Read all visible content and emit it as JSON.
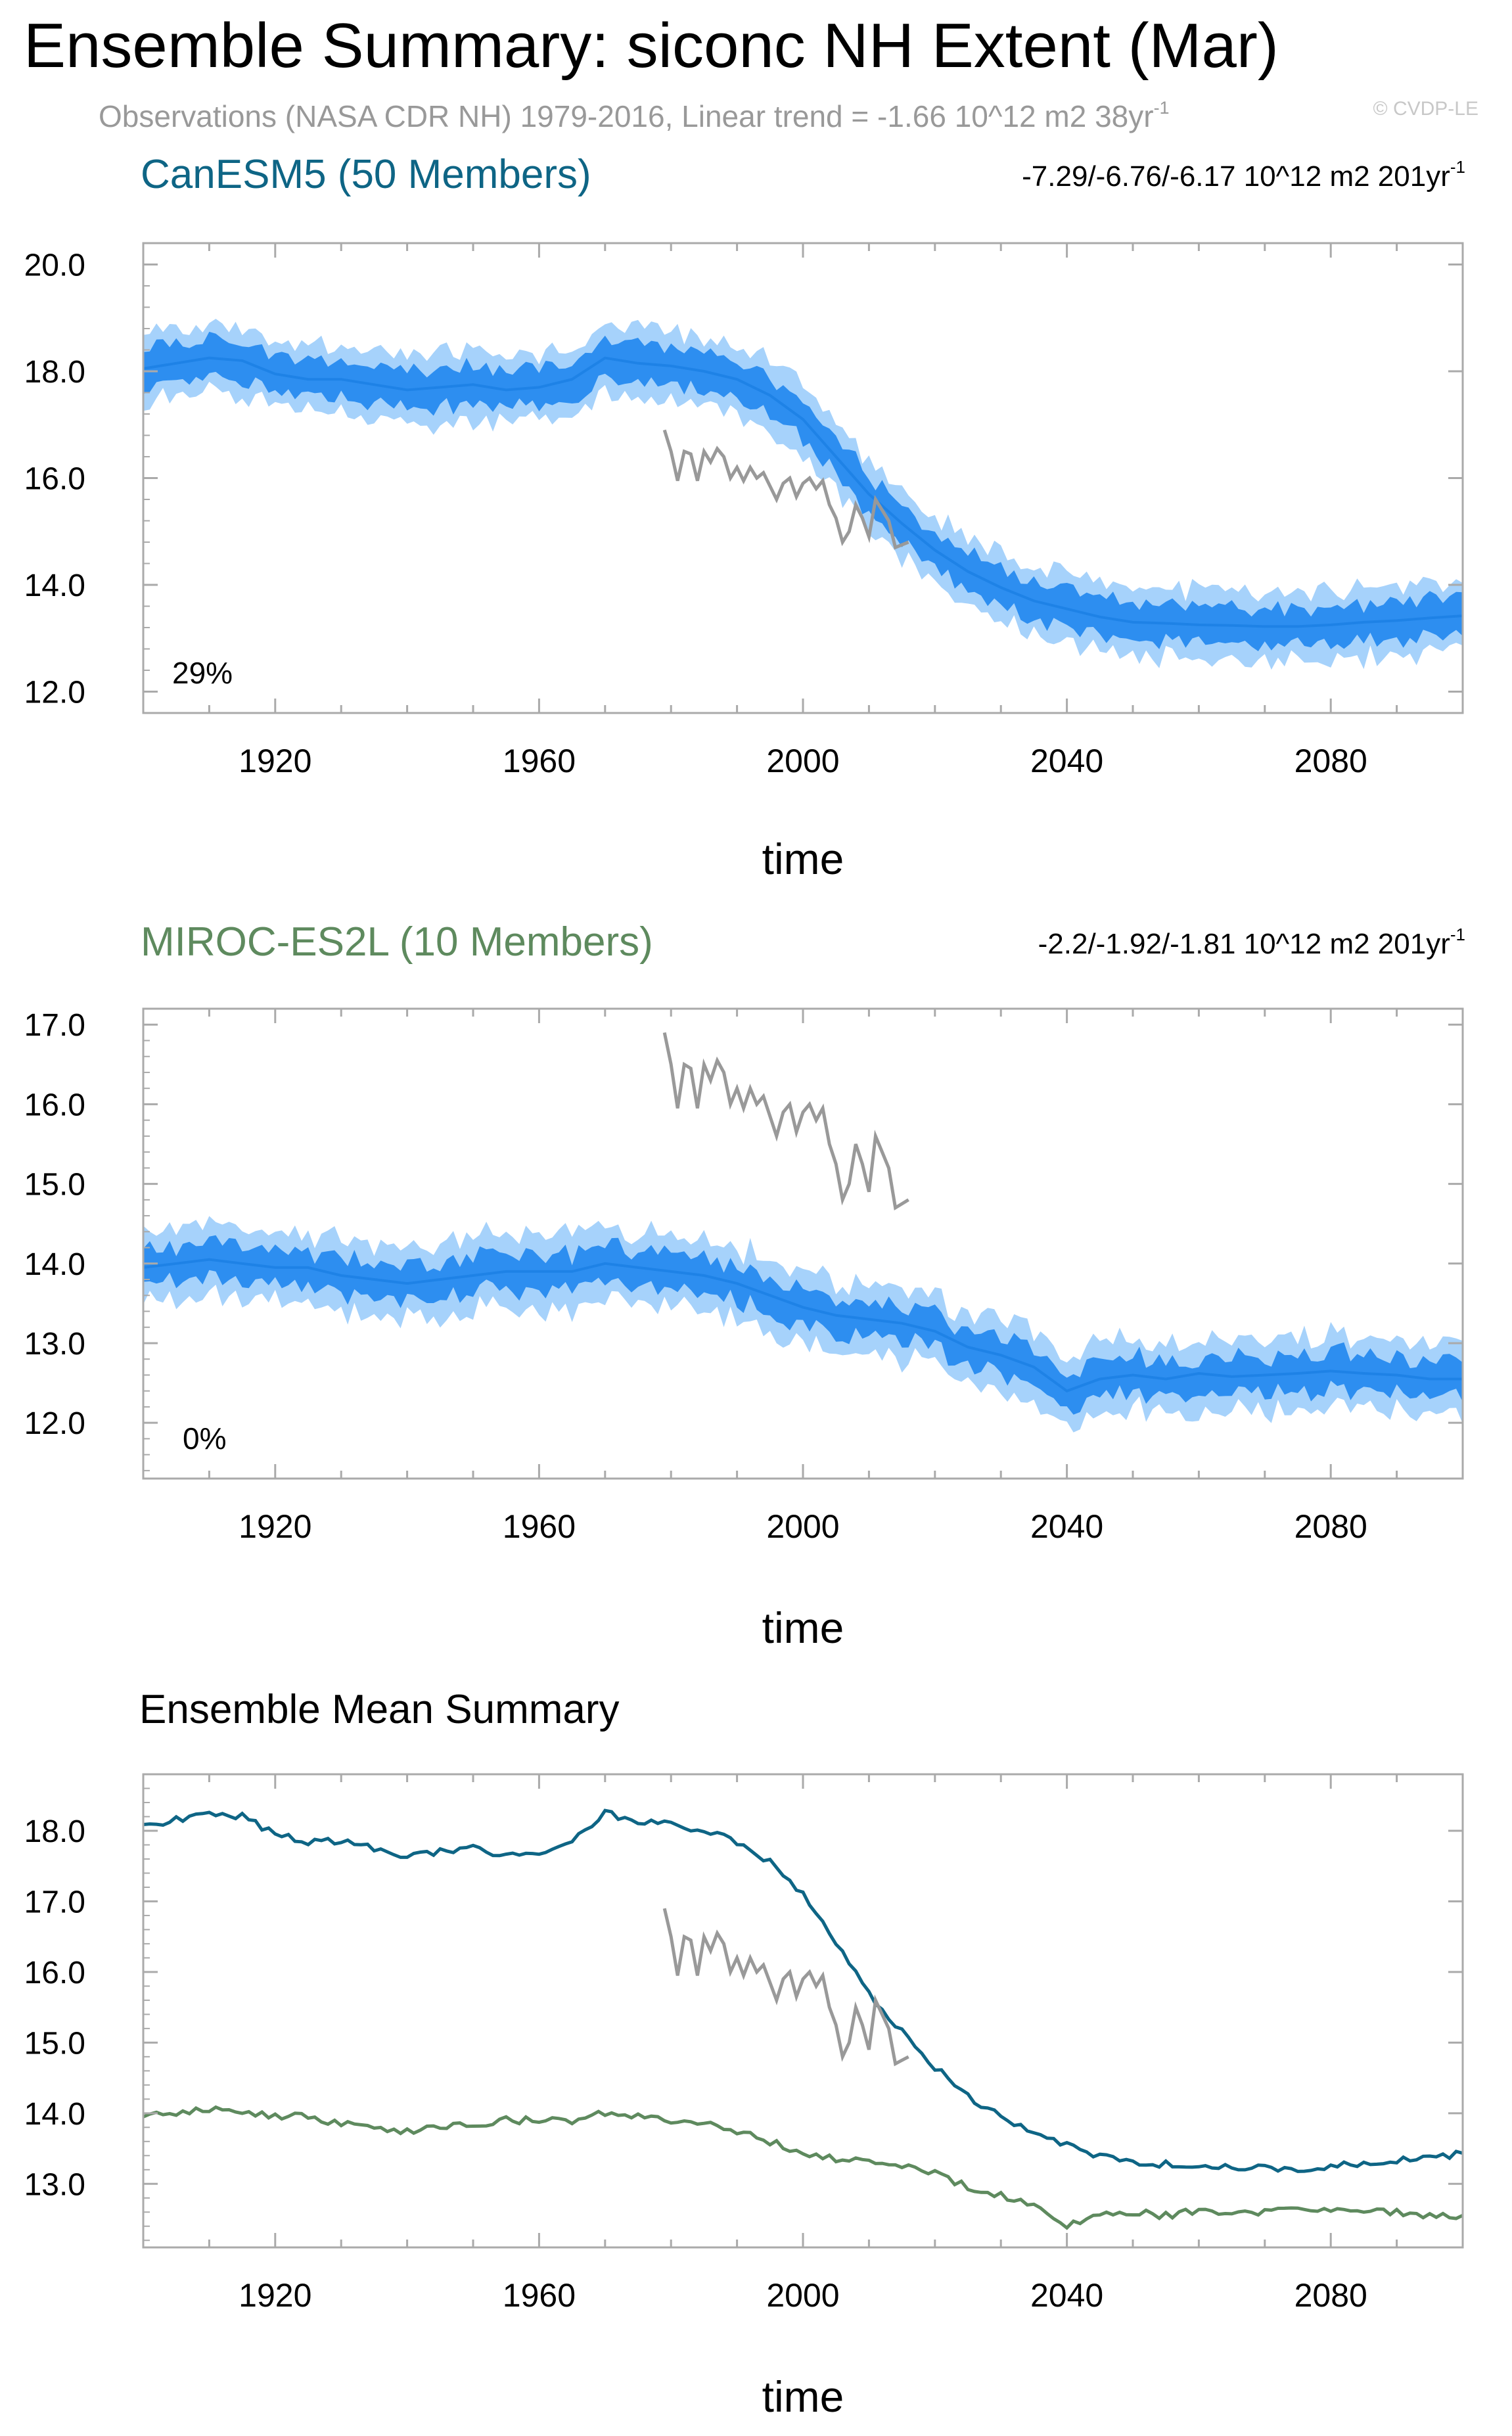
{
  "figure": {
    "title": "Ensemble Summary: siconc NH Extent (Mar)",
    "subtitle": "Observations (NASA CDR NH) 1979-2016, Linear trend = -1.66 10^12 m2 38yr",
    "subtitle_sup": "-1",
    "watermark": "© CVDP-LE",
    "colors": {
      "band_outer": "#a6d2fb",
      "band_inner": "#2d8ef0",
      "mean_line": "#1e82e6",
      "observations": "#999999",
      "canesm5": "#0e6585",
      "miroc": "#5e8a5e",
      "frame": "#aaaaaa",
      "text": "#000000"
    }
  },
  "chart_data": [
    {
      "id": "canesm5",
      "type": "area",
      "title": "CanESM5 (50 Members)",
      "title_color": "#0e6585",
      "trend_text": "-7.29/-6.76/-6.17 10^12 m2 201yr",
      "trend_sup": "-1",
      "percent_label": "29%",
      "xlabel": "time",
      "xlim": [
        1900,
        2100
      ],
      "ylim": [
        11.6,
        20.4
      ],
      "x_ticks": [
        1920,
        1960,
        2000,
        2040,
        2080
      ],
      "y_ticks": [
        12.0,
        14.0,
        16.0,
        18.0,
        20.0
      ],
      "y_tick_labels": [
        "12.0",
        "14.0",
        "16.0",
        "18.0",
        "20.0"
      ],
      "series": [
        {
          "name": "ensemble mean",
          "x": [
            1900,
            1905,
            1910,
            1915,
            1920,
            1925,
            1930,
            1935,
            1940,
            1945,
            1950,
            1955,
            1960,
            1965,
            1970,
            1975,
            1980,
            1985,
            1990,
            1995,
            2000,
            2005,
            2010,
            2015,
            2020,
            2025,
            2030,
            2035,
            2040,
            2045,
            2050,
            2055,
            2060,
            2065,
            2070,
            2075,
            2080,
            2085,
            2090,
            2095,
            2100
          ],
          "values": [
            18.05,
            18.15,
            18.25,
            18.2,
            17.95,
            17.85,
            17.85,
            17.75,
            17.65,
            17.7,
            17.75,
            17.65,
            17.7,
            17.85,
            18.25,
            18.15,
            18.1,
            18.0,
            17.85,
            17.55,
            17.1,
            16.4,
            15.7,
            15.15,
            14.65,
            14.25,
            13.95,
            13.7,
            13.55,
            13.4,
            13.3,
            13.28,
            13.25,
            13.24,
            13.22,
            13.22,
            13.25,
            13.3,
            13.33,
            13.38,
            13.42
          ]
        },
        {
          "name": "ensemble range",
          "band_inner_halfwidth": 0.35,
          "band_outer_halfwidth": 0.65
        }
      ],
      "observations": {
        "name": "Observations (NASA CDR NH)",
        "x": [
          1979,
          1980,
          1981,
          1982,
          1983,
          1984,
          1985,
          1986,
          1987,
          1988,
          1989,
          1990,
          1991,
          1992,
          1993,
          1994,
          1995,
          1996,
          1997,
          1998,
          1999,
          2000,
          2001,
          2002,
          2003,
          2004,
          2005,
          2006,
          2007,
          2008,
          2009,
          2010,
          2011,
          2012,
          2013,
          2014,
          2015,
          2016
        ],
        "values": [
          16.9,
          16.5,
          15.95,
          16.5,
          16.45,
          15.95,
          16.5,
          16.3,
          16.55,
          16.4,
          16.0,
          16.2,
          15.95,
          16.2,
          16.0,
          16.1,
          15.85,
          15.6,
          15.9,
          16.0,
          15.65,
          15.9,
          16.0,
          15.8,
          15.95,
          15.5,
          15.25,
          14.8,
          15.0,
          15.5,
          15.25,
          14.9,
          15.6,
          15.4,
          15.2,
          14.7,
          14.75,
          14.8
        ]
      }
    },
    {
      "id": "miroc",
      "type": "area",
      "title": "MIROC-ES2L (10 Members)",
      "title_color": "#5e8a5e",
      "trend_text": "-2.2/-1.92/-1.81 10^12 m2 201yr",
      "trend_sup": "-1",
      "percent_label": "0%",
      "xlabel": "time",
      "xlim": [
        1900,
        2100
      ],
      "ylim": [
        11.3,
        17.2
      ],
      "x_ticks": [
        1920,
        1960,
        2000,
        2040,
        2080
      ],
      "y_ticks": [
        12.0,
        13.0,
        14.0,
        15.0,
        16.0,
        17.0
      ],
      "y_tick_labels": [
        "12.0",
        "13.0",
        "14.0",
        "15.0",
        "16.0",
        "17.0"
      ],
      "series": [
        {
          "name": "ensemble mean",
          "x": [
            1900,
            1905,
            1910,
            1915,
            1920,
            1925,
            1930,
            1935,
            1940,
            1945,
            1950,
            1955,
            1960,
            1965,
            1970,
            1975,
            1980,
            1985,
            1990,
            1995,
            2000,
            2005,
            2010,
            2015,
            2020,
            2025,
            2030,
            2035,
            2040,
            2045,
            2050,
            2055,
            2060,
            2065,
            2070,
            2075,
            2080,
            2085,
            2090,
            2095,
            2100
          ],
          "values": [
            13.95,
            14.0,
            14.05,
            14.0,
            13.95,
            13.95,
            13.85,
            13.8,
            13.75,
            13.8,
            13.85,
            13.9,
            13.9,
            13.9,
            14.0,
            13.95,
            13.9,
            13.85,
            13.75,
            13.6,
            13.45,
            13.35,
            13.3,
            13.25,
            13.15,
            12.95,
            12.85,
            12.7,
            12.4,
            12.55,
            12.6,
            12.55,
            12.62,
            12.58,
            12.6,
            12.62,
            12.65,
            12.62,
            12.6,
            12.55,
            12.55
          ]
        },
        {
          "name": "ensemble range",
          "band_inner_halfwidth": 0.22,
          "band_outer_halfwidth": 0.45
        }
      ],
      "observations": {
        "name": "Observations (NASA CDR NH)",
        "x": [
          1979,
          1980,
          1981,
          1982,
          1983,
          1984,
          1985,
          1986,
          1987,
          1988,
          1989,
          1990,
          1991,
          1992,
          1993,
          1994,
          1995,
          1996,
          1997,
          1998,
          1999,
          2000,
          2001,
          2002,
          2003,
          2004,
          2005,
          2006,
          2007,
          2008,
          2009,
          2010,
          2011,
          2012,
          2013,
          2014,
          2015,
          2016
        ],
        "values": [
          16.9,
          16.5,
          15.95,
          16.5,
          16.45,
          15.95,
          16.5,
          16.3,
          16.55,
          16.4,
          16.0,
          16.2,
          15.95,
          16.2,
          16.0,
          16.1,
          15.85,
          15.6,
          15.9,
          16.0,
          15.65,
          15.9,
          16.0,
          15.8,
          15.95,
          15.5,
          15.25,
          14.8,
          15.0,
          15.5,
          15.25,
          14.9,
          15.6,
          15.4,
          15.2,
          14.7,
          14.75,
          14.8
        ]
      }
    },
    {
      "id": "mean",
      "type": "line",
      "title": "Ensemble Mean Summary",
      "title_color": "#000000",
      "xlabel": "time",
      "xlim": [
        1900,
        2100
      ],
      "ylim": [
        12.1,
        18.8
      ],
      "x_ticks": [
        1920,
        1960,
        2000,
        2040,
        2080
      ],
      "y_ticks": [
        13.0,
        14.0,
        15.0,
        16.0,
        17.0,
        18.0
      ],
      "y_tick_labels": [
        "13.0",
        "14.0",
        "15.0",
        "16.0",
        "17.0",
        "18.0"
      ],
      "series": [
        {
          "name": "CanESM5",
          "color": "#0e6585",
          "x": [
            1900,
            1905,
            1910,
            1915,
            1920,
            1925,
            1930,
            1935,
            1940,
            1945,
            1950,
            1955,
            1960,
            1965,
            1970,
            1975,
            1980,
            1985,
            1990,
            1995,
            2000,
            2005,
            2010,
            2015,
            2020,
            2025,
            2030,
            2035,
            2040,
            2045,
            2050,
            2055,
            2060,
            2065,
            2070,
            2075,
            2080,
            2085,
            2090,
            2095,
            2100
          ],
          "values": [
            18.05,
            18.15,
            18.25,
            18.2,
            17.95,
            17.85,
            17.85,
            17.75,
            17.65,
            17.7,
            17.75,
            17.65,
            17.7,
            17.85,
            18.25,
            18.15,
            18.1,
            18.0,
            17.85,
            17.55,
            17.1,
            16.4,
            15.7,
            15.15,
            14.65,
            14.25,
            13.95,
            13.7,
            13.55,
            13.4,
            13.3,
            13.28,
            13.25,
            13.24,
            13.22,
            13.22,
            13.25,
            13.3,
            13.33,
            13.38,
            13.42
          ]
        },
        {
          "name": "MIROC-ES2L",
          "color": "#5e8a5e",
          "x": [
            1900,
            1905,
            1910,
            1915,
            1920,
            1925,
            1930,
            1935,
            1940,
            1945,
            1950,
            1955,
            1960,
            1965,
            1970,
            1975,
            1980,
            1985,
            1990,
            1995,
            2000,
            2005,
            2010,
            2015,
            2020,
            2025,
            2030,
            2035,
            2040,
            2045,
            2050,
            2055,
            2060,
            2065,
            2070,
            2075,
            2080,
            2085,
            2090,
            2095,
            2100
          ],
          "values": [
            13.95,
            14.0,
            14.05,
            14.0,
            13.95,
            13.95,
            13.85,
            13.8,
            13.75,
            13.8,
            13.85,
            13.9,
            13.9,
            13.9,
            14.0,
            13.95,
            13.9,
            13.85,
            13.75,
            13.6,
            13.45,
            13.35,
            13.3,
            13.25,
            13.15,
            12.95,
            12.85,
            12.7,
            12.4,
            12.55,
            12.6,
            12.55,
            12.62,
            12.58,
            12.6,
            12.62,
            12.65,
            12.62,
            12.6,
            12.55,
            12.55
          ]
        }
      ],
      "observations": {
        "name": "Observations (NASA CDR NH)",
        "x": [
          1979,
          1980,
          1981,
          1982,
          1983,
          1984,
          1985,
          1986,
          1987,
          1988,
          1989,
          1990,
          1991,
          1992,
          1993,
          1994,
          1995,
          1996,
          1997,
          1998,
          1999,
          2000,
          2001,
          2002,
          2003,
          2004,
          2005,
          2006,
          2007,
          2008,
          2009,
          2010,
          2011,
          2012,
          2013,
          2014,
          2015,
          2016
        ],
        "values": [
          16.9,
          16.5,
          15.95,
          16.5,
          16.45,
          15.95,
          16.5,
          16.3,
          16.55,
          16.4,
          16.0,
          16.2,
          15.95,
          16.2,
          16.0,
          16.1,
          15.85,
          15.6,
          15.9,
          16.0,
          15.65,
          15.9,
          16.0,
          15.8,
          15.95,
          15.5,
          15.25,
          14.8,
          15.0,
          15.5,
          15.25,
          14.9,
          15.6,
          15.4,
          15.2,
          14.7,
          14.75,
          14.8
        ]
      }
    }
  ]
}
